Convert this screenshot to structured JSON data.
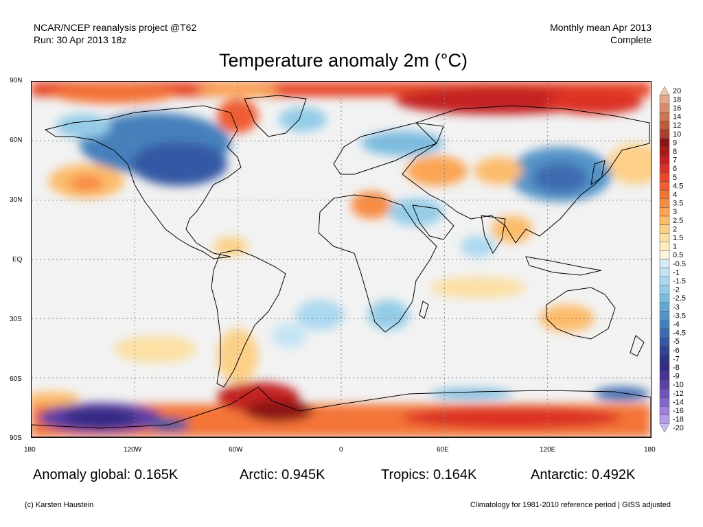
{
  "header": {
    "project": "NCAR/NCEP reanalysis project @T62",
    "run": "Run: 30 Apr 2013 18z",
    "period": "Monthly mean Apr 2013",
    "status": "Complete"
  },
  "title": "Temperature anomaly 2m (°C)",
  "axes": {
    "lat_labels": [
      "90N",
      "60N",
      "30N",
      "EQ",
      "30S",
      "60S",
      "90S"
    ],
    "lon_labels": [
      "180",
      "120W",
      "60W",
      "0",
      "60E",
      "120E",
      "180"
    ]
  },
  "colorbar": {
    "labels": [
      "20",
      "18",
      "16",
      "14",
      "12",
      "10",
      "9",
      "8",
      "7",
      "6",
      "5",
      "4.5",
      "4",
      "3.5",
      "3",
      "2.5",
      "2",
      "1.5",
      "1",
      "0.5",
      "-0.5",
      "-1",
      "-1.5",
      "-2",
      "-2.5",
      "-3",
      "-3.5",
      "-4",
      "-4.5",
      "-5",
      "-6",
      "-7",
      "-8",
      "-9",
      "-10",
      "-12",
      "-14",
      "-16",
      "-18",
      "-20"
    ],
    "colors": [
      "#f0c8b4",
      "#e4a888",
      "#d88c6c",
      "#cc7454",
      "#bc5c3c",
      "#a8402c",
      "#8c1414",
      "#a81818",
      "#c42020",
      "#dc3028",
      "#e8482c",
      "#f05c30",
      "#f47438",
      "#f88c44",
      "#fca454",
      "#fcbc6c",
      "#fcd088",
      "#fce0a4",
      "#fcecc0",
      "#f8f4e0",
      "#d8ecf8",
      "#c4e4f4",
      "#acd8f0",
      "#94cce8",
      "#7cbce0",
      "#64a8d4",
      "#5494c8",
      "#4480bc",
      "#3c6cb0",
      "#3458a4",
      "#304494",
      "#2c3484",
      "#342c84",
      "#483494",
      "#5c40a4",
      "#7054b8",
      "#8468cc",
      "#9c80dc",
      "#b49ce8",
      "#ccbcf4"
    ]
  },
  "stats": {
    "global": "Anomaly global: 0.165K",
    "arctic": "Arctic: 0.945K",
    "tropics": "Tropics: 0.164K",
    "antarctic": "Antarctic: 0.492K"
  },
  "footer": {
    "credit": "(c) Karsten Haustein",
    "note": "Climatology for 1981-2010 reference period | GISS adjusted"
  }
}
